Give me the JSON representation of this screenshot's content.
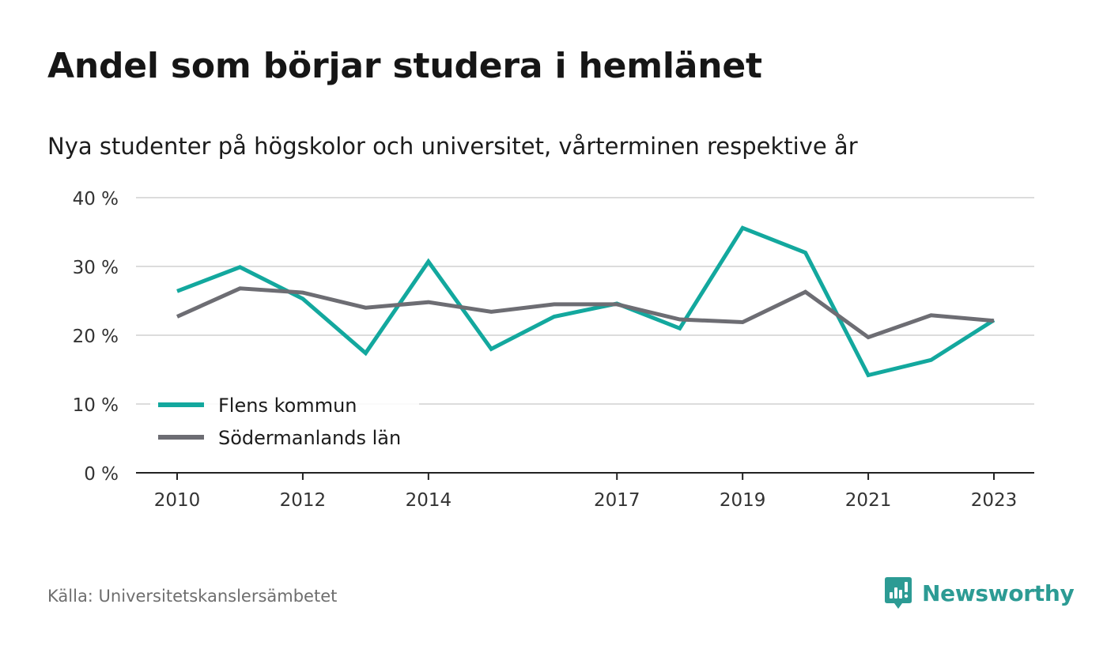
{
  "title": "Andel som börjar studera i hemlänet",
  "subtitle": "Nya studenter på högskolor och universitet, vårterminen respektive år",
  "source": "Källa: Universitetskanslersämbetet",
  "brand": {
    "name": "Newsworthy",
    "icon": "newsworthy-logo-icon",
    "color": "#2c9b94"
  },
  "chart_data": {
    "type": "line",
    "x": [
      2010,
      2011,
      2012,
      2013,
      2014,
      2015,
      2016,
      2017,
      2018,
      2019,
      2020,
      2021,
      2022,
      2023
    ],
    "x_tick_labels": [
      "2010",
      "2012",
      "2014",
      "2017",
      "2019",
      "2021",
      "2023"
    ],
    "y_tick_labels": [
      "0 %",
      "10 %",
      "20 %",
      "30 %",
      "40 %"
    ],
    "y_ticks": [
      0,
      10,
      20,
      30,
      40
    ],
    "ylim": [
      0,
      40
    ],
    "grid": true,
    "legend_position": "bottom-left",
    "series": [
      {
        "name": "Flens kommun",
        "color": "#13a89e",
        "values": [
          26.4,
          29.9,
          25.3,
          17.4,
          30.7,
          18.0,
          22.7,
          24.6,
          21.0,
          35.6,
          32.0,
          14.2,
          16.4,
          22.2
        ]
      },
      {
        "name": "Södermanlands län",
        "color": "#6d6d73",
        "values": [
          22.7,
          26.8,
          26.2,
          24.0,
          24.8,
          23.4,
          24.5,
          24.5,
          22.3,
          21.9,
          26.3,
          19.7,
          22.9,
          22.1
        ]
      }
    ]
  }
}
